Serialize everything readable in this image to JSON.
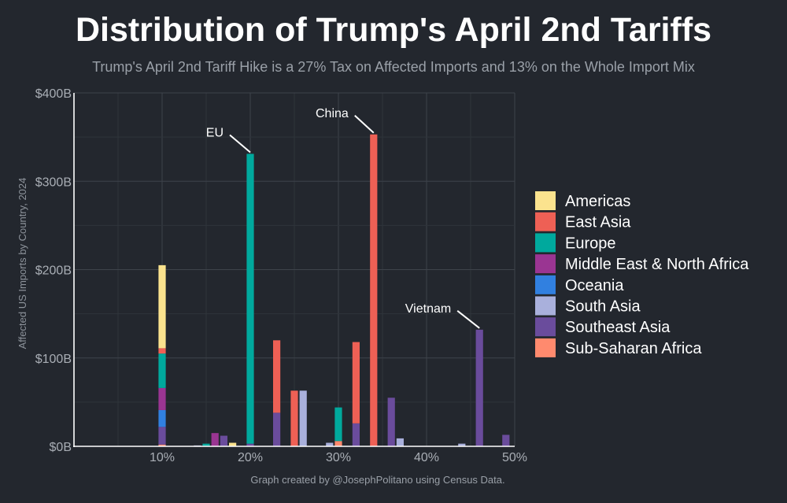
{
  "title": "Distribution of Trump's April 2nd Tariffs",
  "subtitle": "Trump's April 2nd Tariff Hike is a 27% Tax on Affected Imports and 13% on the Whole Import Mix",
  "caption": "Graph created by @JosephPolitano using Census Data.",
  "chart_data": {
    "type": "bar",
    "stacked": true,
    "title": "Distribution of Trump's April 2nd Tariffs",
    "xlabel": "",
    "ylabel": "Affected US Imports by Country, 2024",
    "x_unit": "tariff rate (%)",
    "y_unit": "billions USD",
    "xlim": [
      0,
      50
    ],
    "ylim": [
      0,
      400
    ],
    "x_ticks": [
      10,
      20,
      30,
      40,
      50
    ],
    "x_tick_labels": [
      "10%",
      "20%",
      "30%",
      "40%",
      "50%"
    ],
    "y_ticks": [
      0,
      100,
      200,
      300,
      400
    ],
    "y_tick_labels": [
      "$0B",
      "$100B",
      "$200B",
      "$300B",
      "$400B"
    ],
    "grid": true,
    "legend_position": "right",
    "series": [
      {
        "name": "Americas",
        "color": "#fbe38e"
      },
      {
        "name": "East Asia",
        "color": "#ee6055"
      },
      {
        "name": "Europe",
        "color": "#00a99d"
      },
      {
        "name": "Middle East & North Africa",
        "color": "#9a3592"
      },
      {
        "name": "Oceania",
        "color": "#3180e0"
      },
      {
        "name": "South Asia",
        "color": "#a9b0dc"
      },
      {
        "name": "Southeast Asia",
        "color": "#6a4c9c"
      },
      {
        "name": "Sub-Saharan Africa",
        "color": "#ff8a6e"
      }
    ],
    "bars": [
      {
        "x": 10,
        "segments": [
          {
            "series": "Sub-Saharan Africa",
            "value": 2
          },
          {
            "series": "Southeast Asia",
            "value": 20
          },
          {
            "series": "Oceania",
            "value": 19
          },
          {
            "series": "Middle East & North Africa",
            "value": 25
          },
          {
            "series": "Europe",
            "value": 39
          },
          {
            "series": "East Asia",
            "value": 6
          },
          {
            "series": "Americas",
            "value": 94
          }
        ]
      },
      {
        "x": 14,
        "segments": [
          {
            "series": "South Asia",
            "value": 1
          }
        ]
      },
      {
        "x": 15,
        "segments": [
          {
            "series": "Europe",
            "value": 3
          }
        ]
      },
      {
        "x": 16,
        "segments": [
          {
            "series": "Middle East & North Africa",
            "value": 15
          }
        ]
      },
      {
        "x": 17,
        "segments": [
          {
            "series": "Southeast Asia",
            "value": 12
          }
        ]
      },
      {
        "x": 18,
        "segments": [
          {
            "series": "Americas",
            "value": 4
          }
        ]
      },
      {
        "x": 20,
        "segments": [
          {
            "series": "Southeast Asia",
            "value": 3
          },
          {
            "series": "Europe",
            "value": 328
          }
        ]
      },
      {
        "x": 23,
        "segments": [
          {
            "series": "Southeast Asia",
            "value": 38
          },
          {
            "series": "East Asia",
            "value": 82
          }
        ]
      },
      {
        "x": 25,
        "segments": [
          {
            "series": "East Asia",
            "value": 63
          }
        ]
      },
      {
        "x": 26,
        "segments": [
          {
            "series": "South Asia",
            "value": 63
          }
        ]
      },
      {
        "x": 29,
        "segments": [
          {
            "series": "South Asia",
            "value": 4
          }
        ]
      },
      {
        "x": 30,
        "segments": [
          {
            "series": "Sub-Saharan Africa",
            "value": 6
          },
          {
            "series": "Europe",
            "value": 38
          }
        ]
      },
      {
        "x": 32,
        "segments": [
          {
            "series": "Southeast Asia",
            "value": 26
          },
          {
            "series": "East Asia",
            "value": 92
          }
        ]
      },
      {
        "x": 34,
        "segments": [
          {
            "series": "East Asia",
            "value": 353
          }
        ]
      },
      {
        "x": 36,
        "segments": [
          {
            "series": "Southeast Asia",
            "value": 55
          }
        ]
      },
      {
        "x": 37,
        "segments": [
          {
            "series": "South Asia",
            "value": 9
          }
        ]
      },
      {
        "x": 44,
        "segments": [
          {
            "series": "South Asia",
            "value": 3
          }
        ]
      },
      {
        "x": 46,
        "segments": [
          {
            "series": "Southeast Asia",
            "value": 132
          }
        ]
      },
      {
        "x": 49,
        "segments": [
          {
            "series": "Southeast Asia",
            "value": 13
          }
        ]
      }
    ],
    "annotations": [
      {
        "label": "EU",
        "x": 20,
        "y": 331
      },
      {
        "label": "China",
        "x": 34,
        "y": 353
      },
      {
        "label": "Vietnam",
        "x": 46,
        "y": 132
      }
    ]
  }
}
